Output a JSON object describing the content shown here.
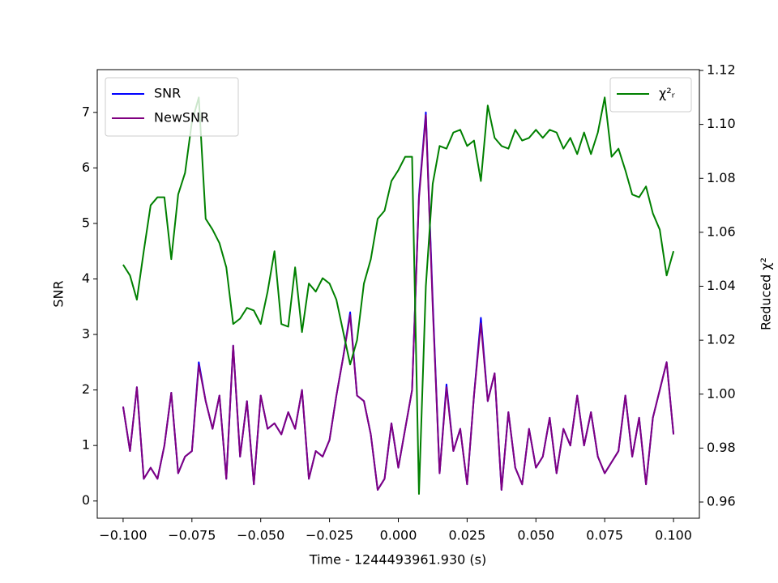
{
  "chart_data": {
    "type": "line",
    "xlabel": "Time - 1244493961.930 (s)",
    "ylabel": "SNR",
    "y2label": "Reduced χ²",
    "x": [
      -0.1,
      -0.0975,
      -0.095,
      -0.0925,
      -0.09,
      -0.0875,
      -0.085,
      -0.0825,
      -0.08,
      -0.0775,
      -0.075,
      -0.0725,
      -0.07,
      -0.0675,
      -0.065,
      -0.0625,
      -0.06,
      -0.0575,
      -0.055,
      -0.0525,
      -0.05,
      -0.0475,
      -0.045,
      -0.0425,
      -0.04,
      -0.0375,
      -0.035,
      -0.0325,
      -0.03,
      -0.0275,
      -0.025,
      -0.0225,
      -0.02,
      -0.0175,
      -0.015,
      -0.0125,
      -0.01,
      -0.0075,
      -0.005,
      -0.0025,
      0,
      0.0025,
      0.005,
      0.0075,
      0.01,
      0.0125,
      0.015,
      0.0175,
      0.02,
      0.0225,
      0.025,
      0.0275,
      0.03,
      0.0325,
      0.035,
      0.0375,
      0.04,
      0.0425,
      0.045,
      0.0475,
      0.05,
      0.0525,
      0.055,
      0.0575,
      0.06,
      0.0625,
      0.065,
      0.0675,
      0.07,
      0.0725,
      0.075,
      0.0775,
      0.08,
      0.0825,
      0.085,
      0.0875,
      0.09,
      0.0925,
      0.095,
      0.0975,
      0.1
    ],
    "series": [
      {
        "name": "SNR",
        "color": "#0000ff",
        "axis": "y",
        "values": [
          1.7,
          0.9,
          2.05,
          0.4,
          0.6,
          0.4,
          1.0,
          1.95,
          0.5,
          0.8,
          0.9,
          2.5,
          1.8,
          1.3,
          1.9,
          0.4,
          2.8,
          0.8,
          1.8,
          0.3,
          1.9,
          1.3,
          1.4,
          1.2,
          1.6,
          1.3,
          2.0,
          0.4,
          0.9,
          0.8,
          1.1,
          1.9,
          2.6,
          3.4,
          1.9,
          1.8,
          1.2,
          0.2,
          0.4,
          1.4,
          0.6,
          1.3,
          2.0,
          5.5,
          7.0,
          3.6,
          0.5,
          2.1,
          0.9,
          1.3,
          0.3,
          1.9,
          3.3,
          1.8,
          2.3,
          0.2,
          1.6,
          0.6,
          0.3,
          1.3,
          0.6,
          0.8,
          1.5,
          0.5,
          1.3,
          1.0,
          1.9,
          1.0,
          1.6,
          0.8,
          0.5,
          0.7,
          0.9,
          1.9,
          0.8,
          1.5,
          0.3,
          1.5,
          2.0,
          2.5,
          1.2
        ]
      },
      {
        "name": "NewSNR",
        "color": "#800080",
        "axis": "y",
        "values": [
          1.7,
          0.9,
          2.05,
          0.4,
          0.6,
          0.4,
          1.0,
          1.95,
          0.5,
          0.8,
          0.9,
          2.45,
          1.8,
          1.3,
          1.9,
          0.4,
          2.8,
          0.8,
          1.8,
          0.3,
          1.9,
          1.3,
          1.4,
          1.2,
          1.6,
          1.3,
          2.0,
          0.4,
          0.9,
          0.8,
          1.1,
          1.9,
          2.6,
          3.35,
          1.9,
          1.8,
          1.2,
          0.2,
          0.4,
          1.4,
          0.6,
          1.3,
          2.0,
          5.45,
          6.95,
          3.5,
          0.5,
          2.05,
          0.9,
          1.3,
          0.3,
          1.9,
          3.2,
          1.8,
          2.3,
          0.2,
          1.6,
          0.6,
          0.3,
          1.3,
          0.6,
          0.8,
          1.5,
          0.5,
          1.3,
          1.0,
          1.9,
          1.0,
          1.6,
          0.8,
          0.5,
          0.7,
          0.9,
          1.9,
          0.8,
          1.5,
          0.3,
          1.5,
          2.0,
          2.5,
          1.2
        ]
      },
      {
        "name": "χ²ᵣ",
        "color": "#008000",
        "axis": "y2",
        "values": [
          1.048,
          1.044,
          1.035,
          1.053,
          1.07,
          1.073,
          1.073,
          1.05,
          1.074,
          1.082,
          1.101,
          1.11,
          1.065,
          1.061,
          1.056,
          1.047,
          1.026,
          1.028,
          1.032,
          1.031,
          1.026,
          1.038,
          1.053,
          1.026,
          1.025,
          1.047,
          1.023,
          1.041,
          1.038,
          1.043,
          1.041,
          1.035,
          1.023,
          1.011,
          1.02,
          1.041,
          1.05,
          1.065,
          1.068,
          1.079,
          1.083,
          1.088,
          1.088,
          0.963,
          1.04,
          1.078,
          1.092,
          1.091,
          1.097,
          1.098,
          1.092,
          1.094,
          1.079,
          1.107,
          1.095,
          1.092,
          1.091,
          1.098,
          1.094,
          1.095,
          1.098,
          1.095,
          1.098,
          1.097,
          1.091,
          1.095,
          1.089,
          1.097,
          1.089,
          1.097,
          1.11,
          1.088,
          1.091,
          1.083,
          1.074,
          1.073,
          1.077,
          1.067,
          1.061,
          1.044,
          1.053
        ]
      }
    ],
    "xlim": [
      -0.1094,
      0.1094
    ],
    "ylim": [
      -0.31,
      7.77
    ],
    "y2lim": [
      0.954,
      1.1203
    ],
    "xticks": [
      {
        "value": -0.1,
        "label": "−0.100"
      },
      {
        "value": -0.075,
        "label": "−0.075"
      },
      {
        "value": -0.05,
        "label": "−0.050"
      },
      {
        "value": -0.025,
        "label": "−0.025"
      },
      {
        "value": 0,
        "label": "0.000"
      },
      {
        "value": 0.025,
        "label": "0.025"
      },
      {
        "value": 0.05,
        "label": "0.050"
      },
      {
        "value": 0.075,
        "label": "0.075"
      },
      {
        "value": 0.1,
        "label": "0.100"
      }
    ],
    "yticks": [
      0,
      1,
      2,
      3,
      4,
      5,
      6,
      7
    ],
    "y2ticks": [
      0.96,
      0.98,
      {
        "value": 1,
        "label": "1.00"
      },
      1.02,
      1.04,
      1.06,
      1.08,
      {
        "value": 1.1,
        "label": "1.10"
      },
      1.12
    ]
  }
}
